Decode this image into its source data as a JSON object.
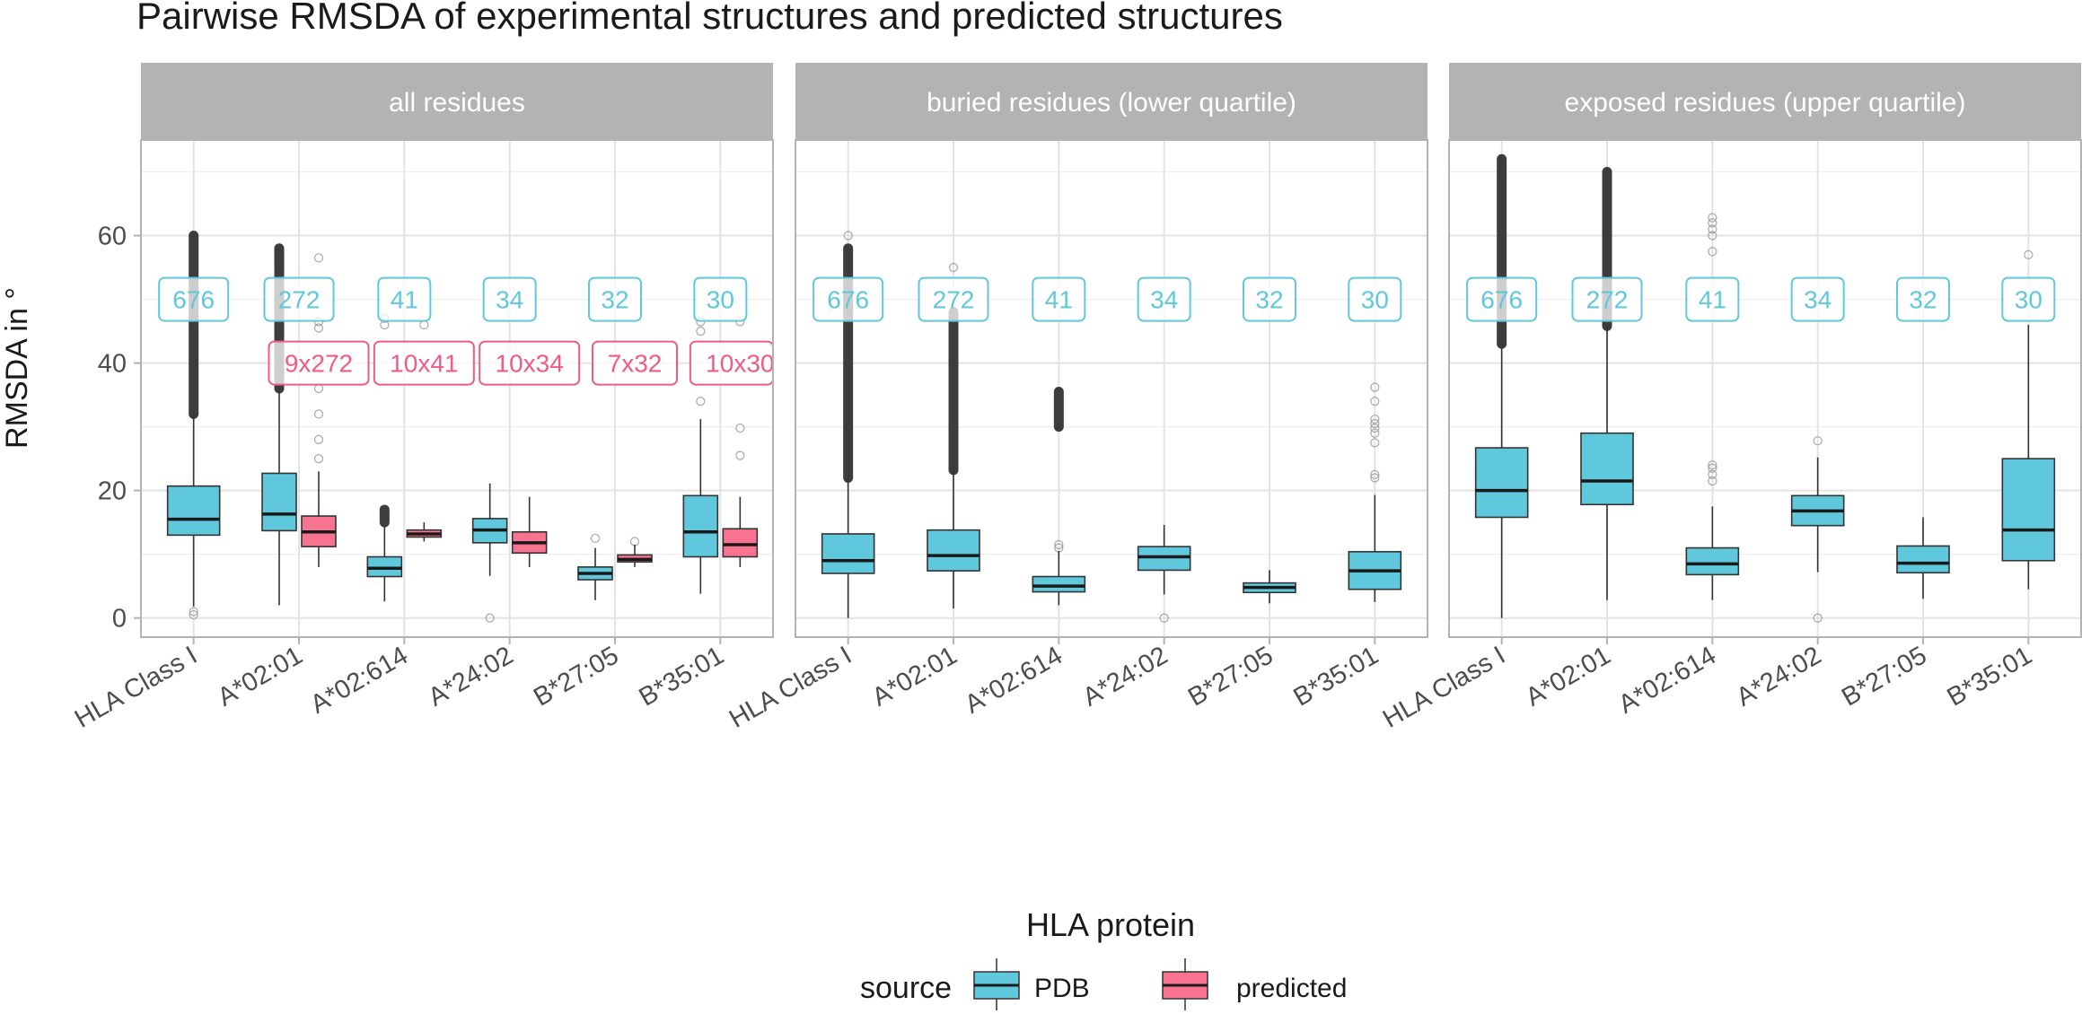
{
  "chart_data": {
    "type": "boxplot",
    "title": "Pairwise RMSDA of experimental structures and predicted structures",
    "ylabel": "RMSDA in °",
    "xlabel": "HLA protein",
    "ylim": [
      -3,
      75
    ],
    "yticks": [
      0,
      20,
      40,
      60
    ],
    "categories": [
      "HLA Class I",
      "A*02:01",
      "A*02:614",
      "A*24:02",
      "B*27:05",
      "B*35:01"
    ],
    "legend": {
      "title": "source",
      "position": "bottom",
      "entries": [
        {
          "label": "PDB",
          "color": "#5fc8dc"
        },
        {
          "label": "predicted",
          "color": "#f7738f"
        }
      ]
    },
    "colors": {
      "PDB": "#5fc8dc",
      "predicted": "#f7738f",
      "strip": "#b3b3b3",
      "stripText": "#ffffff",
      "pdbLabel": "#5fc8dc",
      "predLabel": "#ee5c86"
    },
    "label_y": {
      "count": 50,
      "pred": 40
    },
    "panels": [
      {
        "strip": "all residues",
        "count_labels": [
          "676",
          "272",
          "41",
          "34",
          "32",
          "30"
        ],
        "pred_labels": [
          null,
          "9x272",
          "10x41",
          "10x34",
          "7x32",
          "10x30"
        ],
        "boxes": [
          {
            "cat": 0,
            "source": "PDB",
            "stats": [
              1.8,
              13,
              15.5,
              20.7,
              31.7
            ],
            "outliers_dense": [
              32,
              60
            ],
            "outliers": [
              0.5,
              1.0
            ]
          },
          {
            "cat": 1,
            "source": "PDB",
            "stats": [
              2,
              13.7,
              16.3,
              22.7,
              36
            ],
            "outliers_dense": [
              36,
              58
            ],
            "outliers": []
          },
          {
            "cat": 1,
            "source": "predicted",
            "stats": [
              8,
              11.2,
              13.5,
              16,
              23
            ],
            "outliers_dense": [],
            "outliers": [
              25,
              28,
              32,
              36,
              40,
              45.5,
              46.5,
              56.5
            ]
          },
          {
            "cat": 2,
            "source": "PDB",
            "stats": [
              2.6,
              6.5,
              7.8,
              9.6,
              14.5
            ],
            "outliers_dense": [
              15,
              17
            ],
            "outliers": [
              46,
              47
            ]
          },
          {
            "cat": 2,
            "source": "predicted",
            "stats": [
              12,
              12.7,
              13.2,
              13.8,
              15
            ],
            "outliers_dense": [],
            "outliers": [
              46
            ]
          },
          {
            "cat": 3,
            "source": "PDB",
            "stats": [
              6.6,
              11.8,
              13.8,
              15.6,
              21.1
            ],
            "outliers_dense": [],
            "outliers": [
              0
            ]
          },
          {
            "cat": 3,
            "source": "predicted",
            "stats": [
              8,
              10.2,
              11.8,
              13.5,
              19
            ],
            "outliers_dense": [],
            "outliers": []
          },
          {
            "cat": 4,
            "source": "PDB",
            "stats": [
              2.8,
              6,
              7,
              8,
              11
            ],
            "outliers_dense": [],
            "outliers": [
              12.5
            ]
          },
          {
            "cat": 4,
            "source": "predicted",
            "stats": [
              8,
              8.8,
              9.2,
              9.9,
              11.5
            ],
            "outliers_dense": [],
            "outliers": [
              12
            ]
          },
          {
            "cat": 5,
            "source": "PDB",
            "stats": [
              3.8,
              9.6,
              13.5,
              19.2,
              31.2
            ],
            "outliers_dense": [],
            "outliers": [
              34,
              45,
              46.5
            ]
          },
          {
            "cat": 5,
            "source": "predicted",
            "stats": [
              8,
              9.6,
              11.5,
              14,
              19
            ],
            "outliers_dense": [],
            "outliers": [
              25.5,
              29.8,
              46.5
            ]
          }
        ]
      },
      {
        "strip": "buried residues (lower quartile)",
        "count_labels": [
          "676",
          "272",
          "41",
          "34",
          "32",
          "30"
        ],
        "pred_labels": [],
        "boxes": [
          {
            "cat": 0,
            "source": "PDB",
            "stats": [
              0,
              7,
              9,
              13.2,
              22
            ],
            "outliers_dense": [
              22,
              58
            ],
            "outliers": [
              60
            ]
          },
          {
            "cat": 1,
            "source": "PDB",
            "stats": [
              1.5,
              7.4,
              9.8,
              13.8,
              23.2
            ],
            "outliers_dense": [
              23.2,
              48
            ],
            "outliers": [
              55
            ]
          },
          {
            "cat": 2,
            "source": "PDB",
            "stats": [
              2,
              4.1,
              5,
              6.5,
              10.5
            ],
            "outliers_dense": [
              30,
              35.5
            ],
            "outliers": [
              11,
              11.5
            ]
          },
          {
            "cat": 3,
            "source": "PDB",
            "stats": [
              3.7,
              7.5,
              9.6,
              11.2,
              14.6
            ],
            "outliers_dense": [],
            "outliers": [
              0
            ]
          },
          {
            "cat": 4,
            "source": "PDB",
            "stats": [
              2.3,
              4,
              4.8,
              5.5,
              7.5
            ],
            "outliers_dense": [],
            "outliers": []
          },
          {
            "cat": 5,
            "source": "PDB",
            "stats": [
              2.5,
              4.5,
              7.4,
              10.4,
              19.3
            ],
            "outliers_dense": [],
            "outliers": [
              22,
              22.5,
              27.5,
              29,
              29.8,
              30.5,
              31.2,
              34,
              36.2
            ]
          }
        ]
      },
      {
        "strip": "exposed residues (upper quartile)",
        "count_labels": [
          "676",
          "272",
          "41",
          "34",
          "32",
          "30"
        ],
        "pred_labels": [],
        "boxes": [
          {
            "cat": 0,
            "source": "PDB",
            "stats": [
              0,
              15.8,
              20,
              26.7,
              43
            ],
            "outliers_dense": [
              43,
              72
            ],
            "outliers": []
          },
          {
            "cat": 1,
            "source": "PDB",
            "stats": [
              2.8,
              17.8,
              21.5,
              29,
              45.8
            ],
            "outliers_dense": [
              45.8,
              70
            ],
            "outliers": []
          },
          {
            "cat": 2,
            "source": "PDB",
            "stats": [
              2.8,
              6.8,
              8.5,
              11,
              17.5
            ],
            "outliers_dense": [],
            "outliers": [
              21.5,
              22.5,
              23.5,
              24,
              57.5,
              60,
              61,
              62,
              62.8
            ]
          },
          {
            "cat": 3,
            "source": "PDB",
            "stats": [
              7.2,
              14.5,
              16.8,
              19.2,
              25.2
            ],
            "outliers_dense": [],
            "outliers": [
              0,
              27.8
            ]
          },
          {
            "cat": 4,
            "source": "PDB",
            "stats": [
              3,
              7.1,
              8.6,
              11.3,
              15.8
            ],
            "outliers_dense": [],
            "outliers": []
          },
          {
            "cat": 5,
            "source": "PDB",
            "stats": [
              4.5,
              9,
              13.8,
              25,
              46
            ],
            "outliers_dense": [],
            "outliers": [
              57
            ]
          }
        ]
      }
    ]
  }
}
